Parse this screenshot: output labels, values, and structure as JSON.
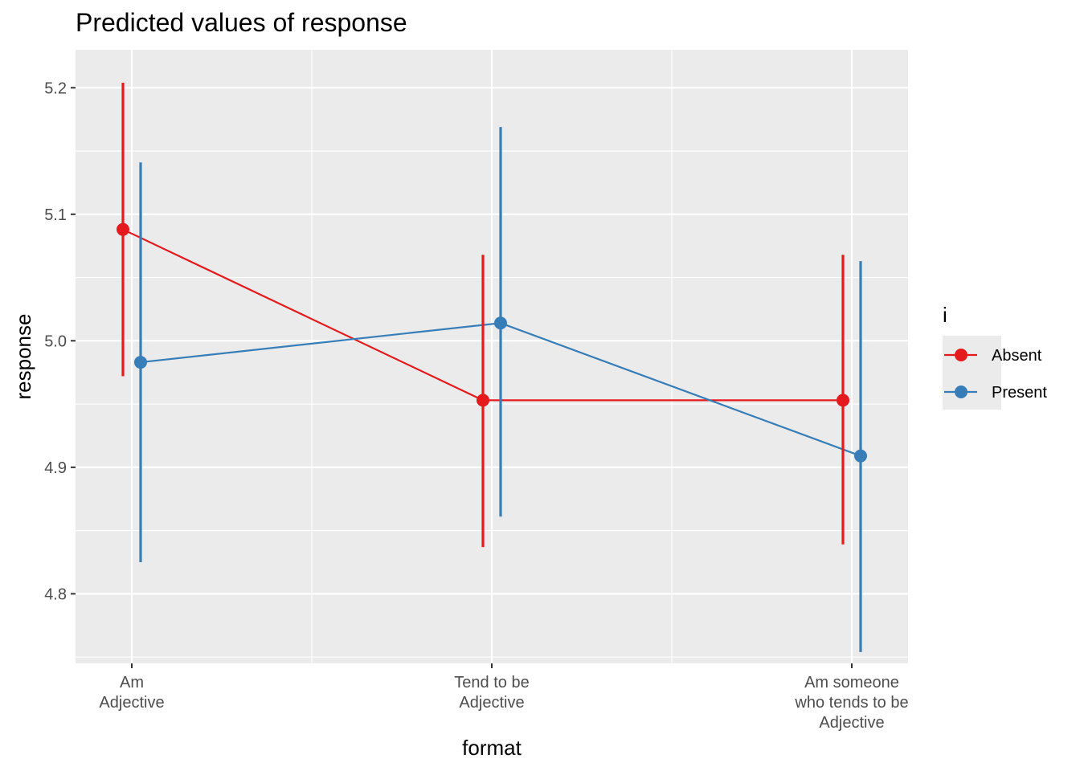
{
  "chart_data": {
    "type": "line",
    "title": "Predicted values of response",
    "xlabel": "format",
    "ylabel": "response",
    "categories": [
      [
        "Am",
        "Adjective"
      ],
      [
        "Tend to be",
        "Adjective"
      ],
      [
        "Am someone",
        "who tends to be",
        "Adjective"
      ]
    ],
    "ylim": [
      4.745,
      5.23
    ],
    "yticks": [
      4.8,
      4.9,
      5.0,
      5.1,
      5.2
    ],
    "ytick_labels": [
      "4.8",
      "4.9",
      "5.0",
      "5.1",
      "5.2"
    ],
    "grid": true,
    "legend": {
      "title": "i",
      "position": "right"
    },
    "series": [
      {
        "name": "Absent",
        "color": "#E41A1C",
        "values": [
          5.088,
          4.953,
          4.953
        ],
        "lower": [
          4.972,
          4.837,
          4.839
        ],
        "upper": [
          5.204,
          5.068,
          5.068
        ]
      },
      {
        "name": "Present",
        "color": "#377EB8",
        "values": [
          4.983,
          5.014,
          4.909
        ],
        "lower": [
          4.825,
          4.861,
          4.754
        ],
        "upper": [
          5.141,
          5.169,
          5.063
        ]
      }
    ]
  }
}
